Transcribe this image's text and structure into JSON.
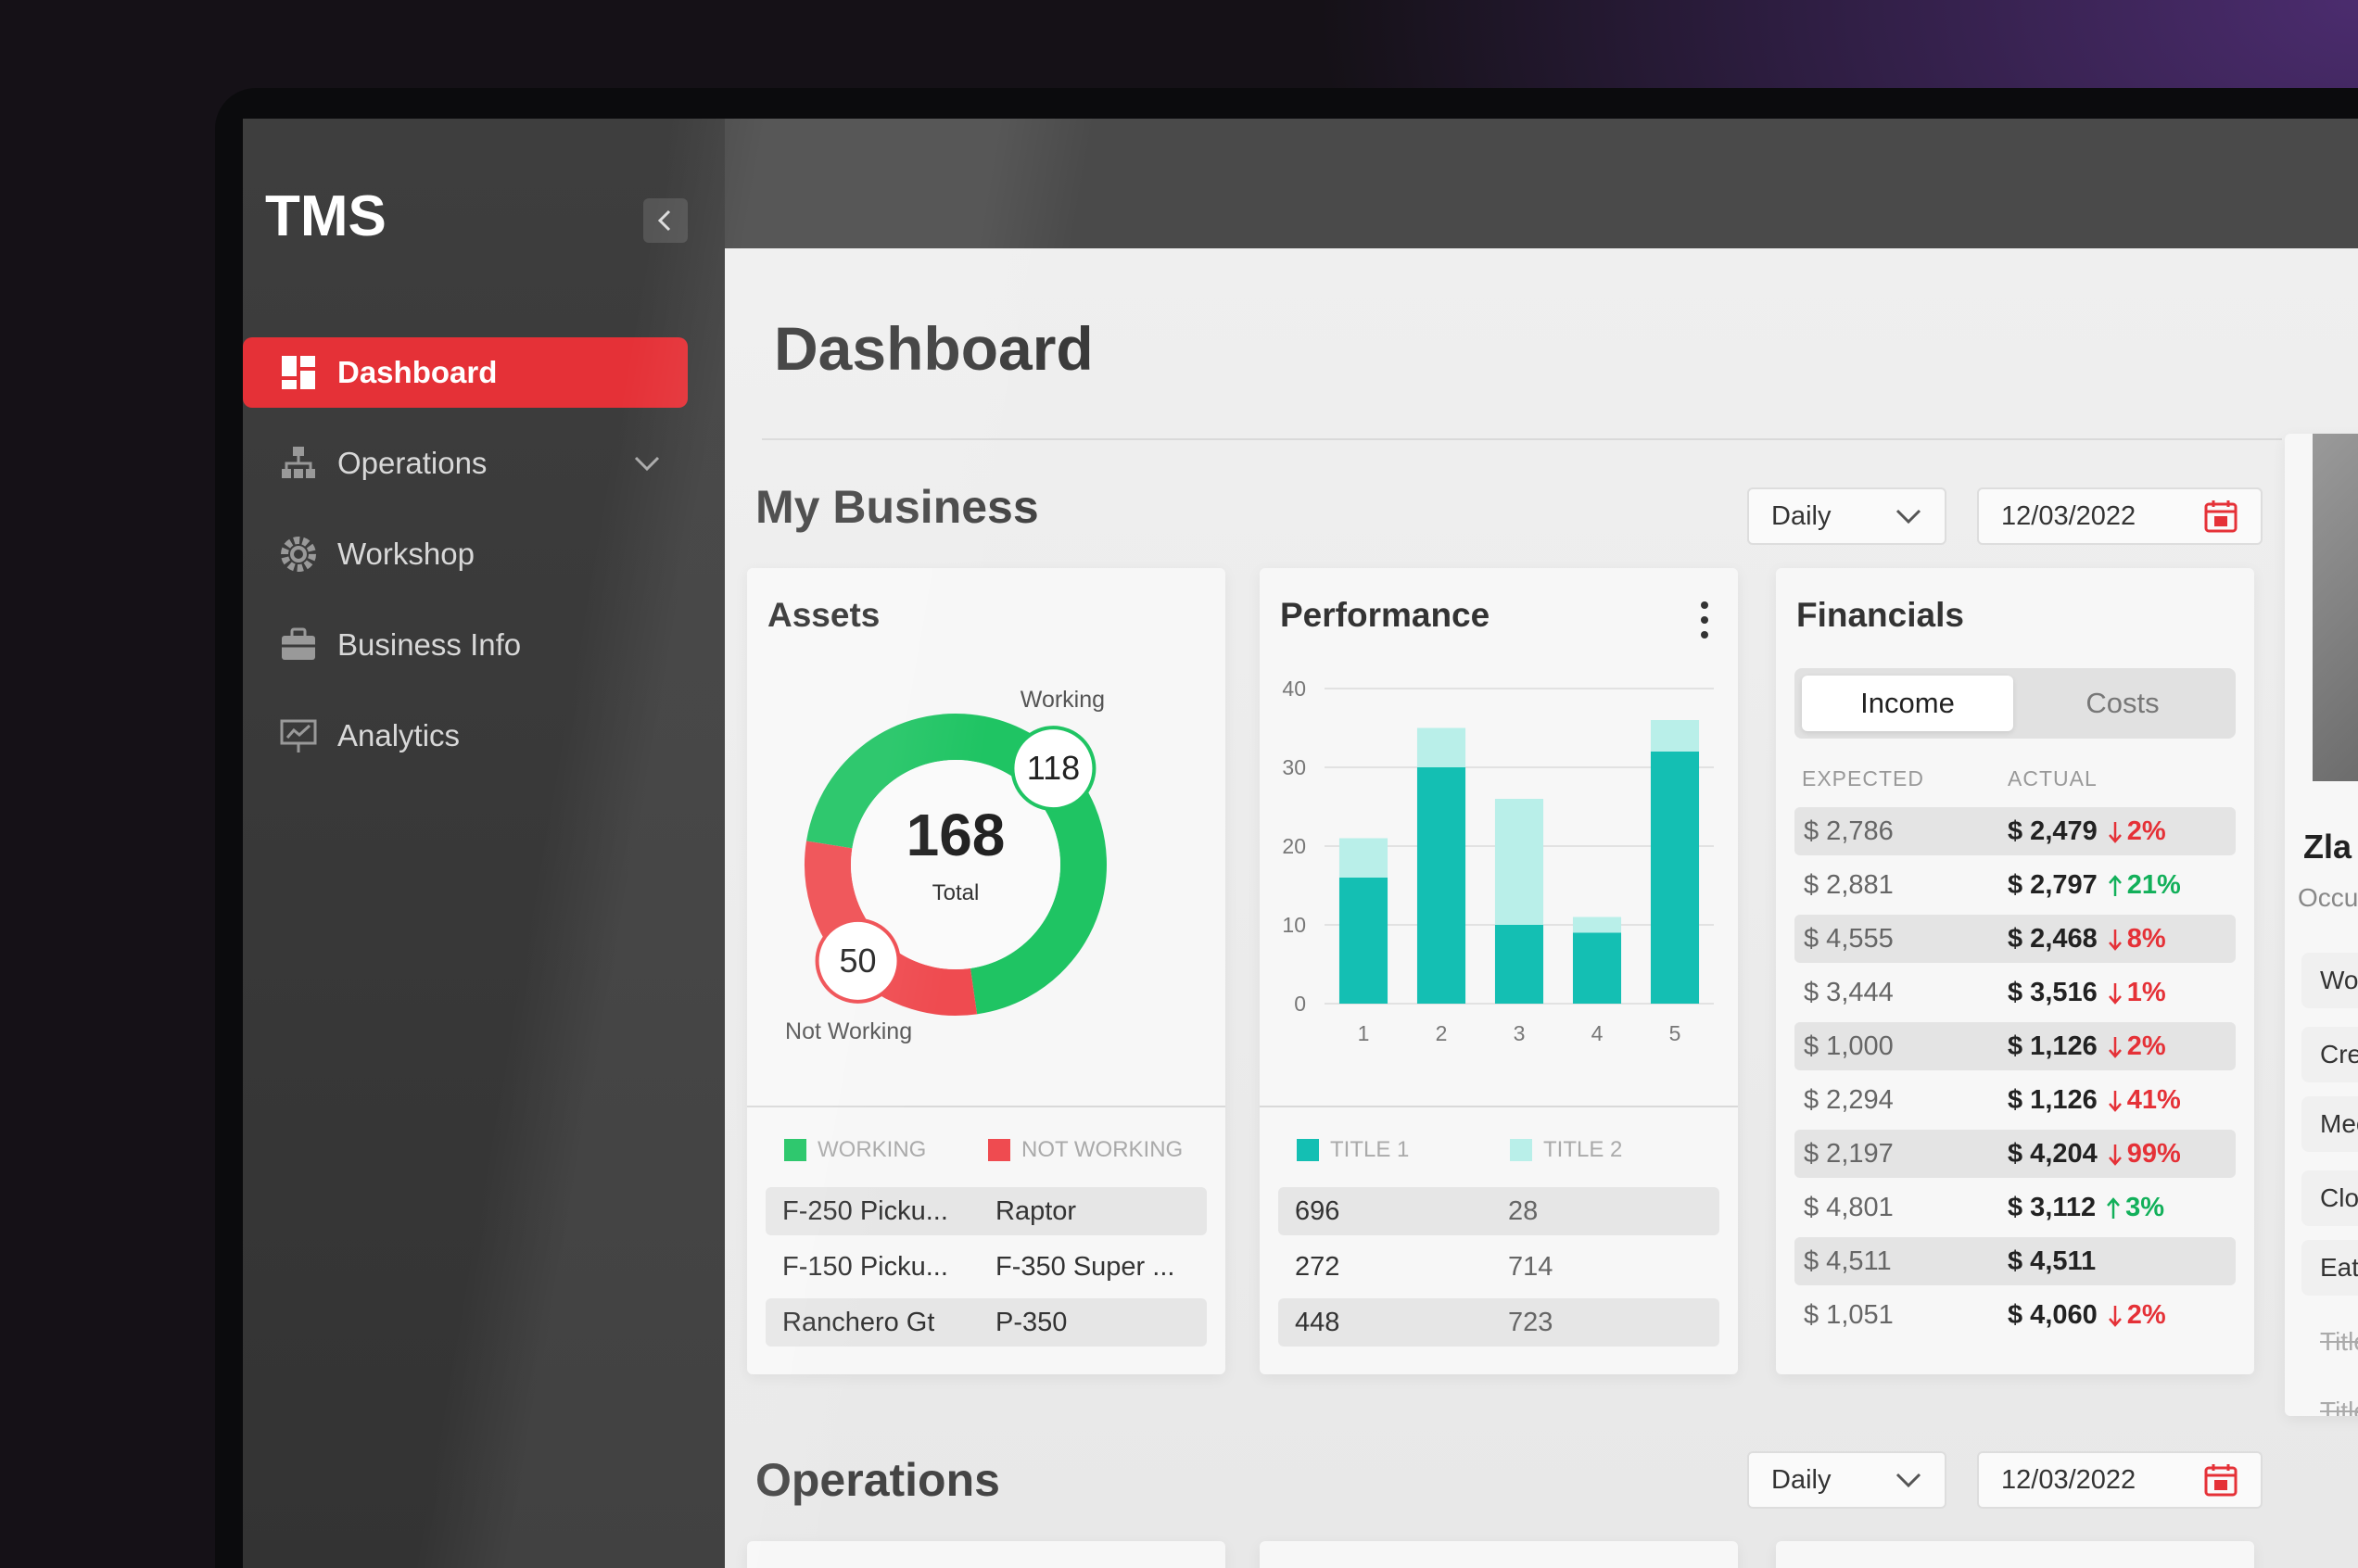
{
  "sidebar": {
    "brand": "TMS",
    "nav": [
      {
        "label": "Dashboard",
        "active": true
      },
      {
        "label": "Operations",
        "active": false
      },
      {
        "label": "Workshop",
        "active": false
      },
      {
        "label": "Business Info",
        "active": false
      },
      {
        "label": "Analytics",
        "active": false
      }
    ]
  },
  "page_title": "Dashboard",
  "my_business": {
    "title": "My Business",
    "period": "Daily",
    "date": "12/03/2022"
  },
  "assets": {
    "title": "Assets",
    "legend": [
      "WORKING",
      "NOT WORKING"
    ],
    "rows": [
      [
        "F-250 Picku...",
        "Raptor"
      ],
      [
        "F-150 Picku...",
        "F-350 Super ..."
      ],
      [
        "Ranchero Gt",
        "P-350"
      ]
    ]
  },
  "performance": {
    "title": "Performance",
    "rows": [
      [
        696,
        28
      ],
      [
        272,
        714
      ],
      [
        448,
        723
      ]
    ]
  },
  "financials": {
    "title": "Financials",
    "tabs": [
      {
        "label": "Income",
        "active": true
      },
      {
        "label": "Costs",
        "active": false
      }
    ],
    "headers": [
      "EXPECTED",
      "ACTUAL"
    ],
    "rows": [
      {
        "expected": "$ 2,786",
        "actual": "$ 2,479",
        "change": "2%",
        "trend": "down"
      },
      {
        "expected": "$ 2,881",
        "actual": "$ 2,797",
        "change": "21%",
        "trend": "up"
      },
      {
        "expected": "$ 4,555",
        "actual": "$ 2,468",
        "change": "8%",
        "trend": "down"
      },
      {
        "expected": "$ 3,444",
        "actual": "$ 3,516",
        "change": "1%",
        "trend": "down"
      },
      {
        "expected": "$ 1,000",
        "actual": "$ 1,126",
        "change": "2%",
        "trend": "down"
      },
      {
        "expected": "$ 2,294",
        "actual": "$ 1,126",
        "change": "41%",
        "trend": "down"
      },
      {
        "expected": "$ 2,197",
        "actual": "$ 4,204",
        "change": "99%",
        "trend": "down"
      },
      {
        "expected": "$ 4,801",
        "actual": "$ 3,112",
        "change": "3%",
        "trend": "up"
      },
      {
        "expected": "$ 4,511",
        "actual": "$ 4,511"
      },
      {
        "expected": "$ 1,051",
        "actual": "$ 4,060",
        "change": "2%",
        "trend": "down"
      }
    ]
  },
  "profile": {
    "name": "Zla",
    "occupation": "Occu",
    "tasks": [
      {
        "label": "Worl",
        "done": false
      },
      {
        "label": "Creat",
        "done": false
      },
      {
        "label": "Meet",
        "done": false
      },
      {
        "label": "Close",
        "done": false
      },
      {
        "label": "Eat a c",
        "done": false
      },
      {
        "label": "Title nar",
        "done": true
      },
      {
        "label": "Title nar",
        "done": true
      },
      {
        "label": "Title nar",
        "done": true
      }
    ]
  },
  "operations": {
    "title": "Operations",
    "period": "Daily",
    "date": "12/03/2022"
  },
  "chart_data": [
    {
      "type": "donut",
      "categories": [
        "Working",
        "Not Working"
      ],
      "values": [
        118,
        50
      ],
      "colors": [
        "#1fc463",
        "#ef4b50"
      ],
      "total": 168,
      "total_label": "Total"
    },
    {
      "type": "bar",
      "stacked": true,
      "categories": [
        1,
        2,
        3,
        4,
        5
      ],
      "series": [
        {
          "name": "TITLE 1",
          "color": "#14bfb3",
          "values": [
            16,
            30,
            10,
            9,
            32
          ]
        },
        {
          "name": "TITLE 2",
          "color": "#b9efe9",
          "values": [
            5,
            5,
            16,
            2,
            4
          ]
        }
      ],
      "ylim": [
        0,
        40
      ],
      "yticks": [
        0,
        10,
        20,
        30,
        40
      ],
      "grid": true
    }
  ]
}
